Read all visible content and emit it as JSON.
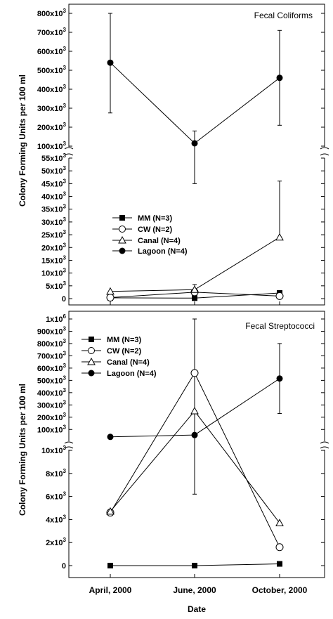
{
  "chart_data": [
    {
      "type": "line",
      "title": "Fecal Coliforms",
      "xlabel": "Date",
      "ylabel": "Colony Forming Units per 100 ml",
      "categories": [
        "April, 2000",
        "June, 2000",
        "October, 2000"
      ],
      "y_axis_break": {
        "lower_range": [
          0,
          55000
        ],
        "upper_range": [
          100000,
          800000
        ]
      },
      "yticks_upper": [
        100000,
        200000,
        300000,
        400000,
        500000,
        600000,
        700000,
        800000
      ],
      "yticks_lower": [
        0,
        5000,
        10000,
        15000,
        20000,
        25000,
        30000,
        35000,
        40000,
        45000,
        50000,
        55000
      ],
      "legend": "upper-left of lower panel",
      "series": [
        {
          "name": "MM (N=3)",
          "marker": "filled-square",
          "values": [
            300,
            200,
            2200
          ]
        },
        {
          "name": "CW (N=2)",
          "marker": "open-circle",
          "values": [
            400,
            2500,
            1000
          ]
        },
        {
          "name": "Canal (N=4)",
          "marker": "open-triangle",
          "values": [
            2800,
            3500,
            24000
          ],
          "error_upper": [
            null,
            5500,
            46000
          ]
        },
        {
          "name": "Lagoon (N=4)",
          "marker": "filled-circle",
          "values": [
            540000,
            115000,
            460000
          ],
          "error_low": [
            275000,
            45000,
            210000
          ],
          "error_high": [
            810000,
            180000,
            710000
          ]
        }
      ]
    },
    {
      "type": "line",
      "title": "Fecal Streptococci",
      "xlabel": "Date",
      "ylabel": "Colony Forming Units per 100 ml",
      "categories": [
        "April, 2000",
        "June, 2000",
        "October, 2000"
      ],
      "y_axis_break": {
        "lower_range": [
          0,
          10000
        ],
        "upper_range": [
          10000,
          1000000
        ]
      },
      "yticks_upper": [
        100000,
        200000,
        300000,
        400000,
        500000,
        600000,
        700000,
        800000,
        900000,
        1000000
      ],
      "yticks_lower": [
        0,
        2000,
        4000,
        6000,
        8000,
        10000
      ],
      "legend": "upper-left",
      "series": [
        {
          "name": "MM (N=3)",
          "marker": "filled-square",
          "values": [
            0,
            0,
            150
          ]
        },
        {
          "name": "CW (N=2)",
          "marker": "open-circle",
          "values": [
            4600,
            560000,
            1600
          ]
        },
        {
          "name": "Canal (N=4)",
          "marker": "open-triangle",
          "values": [
            4700,
            250000,
            3700
          ]
        },
        {
          "name": "Lagoon (N=4)",
          "marker": "filled-circle",
          "values": [
            40000,
            55000,
            515000
          ],
          "error_low": [
            null,
            6200,
            230000
          ],
          "error_high": [
            null,
            1000000,
            800000
          ]
        }
      ]
    }
  ],
  "labels": {
    "fc_title": "Fecal Coliforms",
    "fs_title": "Fecal Streptococci",
    "ylabel": "Colony Forming Units per 100 ml",
    "xlabel": "Date",
    "x_april": "April, 2000",
    "x_june": "June, 2000",
    "x_october": "October, 2000",
    "leg_mm": "MM (N=3)",
    "leg_cw": "CW (N=2)",
    "leg_canal": "Canal (N=4)",
    "leg_lagoon": "Lagoon (N=4)"
  },
  "ticks": {
    "fc_upper": [
      {
        "mant": "800x10",
        "exp": "3"
      },
      {
        "mant": "700x10",
        "exp": "3"
      },
      {
        "mant": "600x10",
        "exp": "3"
      },
      {
        "mant": "500x10",
        "exp": "3"
      },
      {
        "mant": "400x10",
        "exp": "3"
      },
      {
        "mant": "300x10",
        "exp": "3"
      },
      {
        "mant": "200x10",
        "exp": "3"
      },
      {
        "mant": "100x10",
        "exp": "3"
      }
    ],
    "fc_lower": [
      {
        "mant": "55x10",
        "exp": "3"
      },
      {
        "mant": "50x10",
        "exp": "3"
      },
      {
        "mant": "45x10",
        "exp": "3"
      },
      {
        "mant": "40x10",
        "exp": "3"
      },
      {
        "mant": "35x10",
        "exp": "3"
      },
      {
        "mant": "30x10",
        "exp": "3"
      },
      {
        "mant": "25x10",
        "exp": "3"
      },
      {
        "mant": "20x10",
        "exp": "3"
      },
      {
        "mant": "15x10",
        "exp": "3"
      },
      {
        "mant": "10x10",
        "exp": "3"
      },
      {
        "mant": "5x10",
        "exp": "3"
      },
      {
        "mant": "0",
        "exp": ""
      }
    ],
    "fs_upper": [
      {
        "mant": "1x10",
        "exp": "6"
      },
      {
        "mant": "900x10",
        "exp": "3"
      },
      {
        "mant": "800x10",
        "exp": "3"
      },
      {
        "mant": "700x10",
        "exp": "3"
      },
      {
        "mant": "600x10",
        "exp": "3"
      },
      {
        "mant": "500x10",
        "exp": "3"
      },
      {
        "mant": "400x10",
        "exp": "3"
      },
      {
        "mant": "300x10",
        "exp": "3"
      },
      {
        "mant": "200x10",
        "exp": "3"
      },
      {
        "mant": "100x10",
        "exp": "3"
      }
    ],
    "fs_lower": [
      {
        "mant": "10x10",
        "exp": "3"
      },
      {
        "mant": "8x10",
        "exp": "3"
      },
      {
        "mant": "6x10",
        "exp": "3"
      },
      {
        "mant": "4x10",
        "exp": "3"
      },
      {
        "mant": "2x10",
        "exp": "3"
      },
      {
        "mant": "0",
        "exp": ""
      }
    ]
  }
}
